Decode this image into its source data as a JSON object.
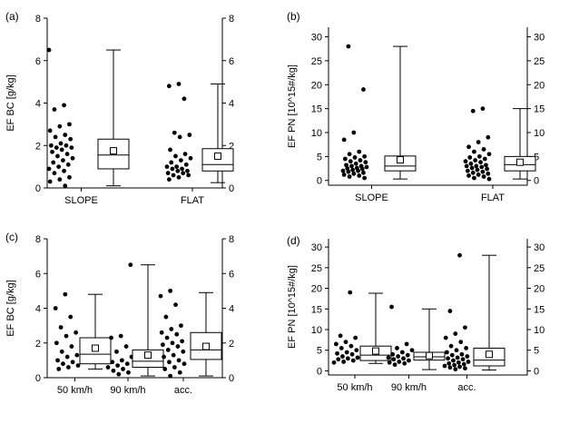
{
  "chart_data": [
    {
      "type": "box",
      "panel_label": "(a)",
      "ylabel": "EF BC [g/kg]",
      "ylim": [
        0,
        8
      ],
      "yticks": [
        0,
        2,
        4,
        6,
        8
      ],
      "right_axis": true,
      "categories": [
        "SLOPE",
        "FLAT"
      ],
      "groups": [
        {
          "label": "SLOPE",
          "points": [
            6.5,
            3.9,
            3.7,
            3.0,
            2.9,
            2.7,
            2.5,
            2.4,
            2.3,
            2.1,
            2.0,
            2.0,
            1.9,
            1.9,
            1.8,
            1.7,
            1.6,
            1.5,
            1.4,
            1.3,
            1.2,
            1.1,
            1.0,
            0.9,
            0.8,
            0.7,
            0.5,
            0.4,
            0.3,
            0.1
          ],
          "box": {
            "min": 0.1,
            "q1": 0.9,
            "median": 1.55,
            "q3": 2.3,
            "max": 6.5,
            "mean": 1.75
          }
        },
        {
          "label": "FLAT",
          "points": [
            4.9,
            4.8,
            4.2,
            2.6,
            2.5,
            2.4,
            1.8,
            1.6,
            1.5,
            1.4,
            1.3,
            1.2,
            1.1,
            1.0,
            1.0,
            0.9,
            0.9,
            0.8,
            0.8,
            0.7,
            0.7,
            0.6,
            0.6,
            0.5,
            0.4
          ],
          "box": {
            "min": 0.25,
            "q1": 0.8,
            "median": 1.1,
            "q3": 1.85,
            "max": 4.9,
            "mean": 1.5
          }
        }
      ]
    },
    {
      "type": "box",
      "panel_label": "(b)",
      "ylabel": "EF PN [10^15#/kg]",
      "ylim": [
        -1,
        32
      ],
      "yticks": [
        0,
        5,
        10,
        15,
        20,
        25,
        30
      ],
      "right_axis": true,
      "categories": [
        "SLOPE",
        "FLAT"
      ],
      "groups": [
        {
          "label": "SLOPE",
          "points": [
            28,
            19,
            10,
            8.5,
            6,
            5.5,
            5,
            4.8,
            4.5,
            4.2,
            4,
            3.8,
            3.5,
            3.2,
            3,
            3,
            2.8,
            2.6,
            2.5,
            2.4,
            2.2,
            2,
            2,
            1.8,
            1.6,
            1.4,
            1.2,
            1,
            0.8,
            0.5
          ],
          "box": {
            "min": 0.3,
            "q1": 2.0,
            "median": 3.0,
            "q3": 5.1,
            "max": 28,
            "mean": 4.3
          }
        },
        {
          "label": "FLAT",
          "points": [
            15,
            14.5,
            9,
            8,
            7,
            6.5,
            6,
            5.5,
            5,
            4.8,
            4.5,
            4.2,
            4,
            3.8,
            3.5,
            3.2,
            3,
            3,
            2.8,
            2.6,
            2.4,
            2.2,
            2,
            1.8,
            1.6,
            1.4,
            1.2,
            1,
            0.8,
            0.5,
            0.3
          ],
          "box": {
            "min": 0.3,
            "q1": 2.0,
            "median": 3.3,
            "q3": 5.0,
            "max": 15,
            "mean": 3.8
          }
        }
      ]
    },
    {
      "type": "box",
      "panel_label": "(c)",
      "ylabel": "EF BC [g/kg]",
      "ylim": [
        0,
        8
      ],
      "yticks": [
        0,
        2,
        4,
        6,
        8
      ],
      "right_axis": true,
      "categories": [
        "50 km/h",
        "90 km/h",
        "acc."
      ],
      "groups": [
        {
          "label": "50 km/h",
          "points": [
            4.8,
            4.0,
            3.5,
            2.9,
            2.6,
            2.4,
            2.0,
            1.8,
            1.5,
            1.3,
            1.2,
            1.0,
            0.9,
            0.8,
            0.7,
            0.6,
            0.5
          ],
          "box": {
            "min": 0.5,
            "q1": 0.8,
            "median": 1.35,
            "q3": 2.3,
            "max": 4.8,
            "mean": 1.7
          }
        },
        {
          "label": "90 km/h",
          "points": [
            6.5,
            2.4,
            2.3,
            1.8,
            1.5,
            1.2,
            1.0,
            0.9,
            0.8,
            0.7,
            0.6,
            0.5,
            0.4,
            0.3,
            0.2
          ],
          "box": {
            "min": 0.1,
            "q1": 0.6,
            "median": 0.95,
            "q3": 1.6,
            "max": 6.5,
            "mean": 1.3
          }
        },
        {
          "label": "acc.",
          "points": [
            5.0,
            4.7,
            4.2,
            3.5,
            3.0,
            2.8,
            2.6,
            2.5,
            2.3,
            2.1,
            2.0,
            1.9,
            1.8,
            1.6,
            1.5,
            1.3,
            1.2,
            1.0,
            0.9,
            0.8,
            0.6,
            0.5,
            0.3,
            0.1
          ],
          "box": {
            "min": 0.1,
            "q1": 1.05,
            "median": 1.6,
            "q3": 2.6,
            "max": 4.9,
            "mean": 1.8
          }
        }
      ]
    },
    {
      "type": "box",
      "panel_label": "(d)",
      "ylabel": "EF PN [10^15#/kg]",
      "ylim": [
        -1,
        32
      ],
      "yticks": [
        0,
        5,
        10,
        15,
        20,
        25,
        30
      ],
      "right_axis": true,
      "categories": [
        "50 km/h",
        "90 km/h",
        "acc."
      ],
      "groups": [
        {
          "label": "50 km/h",
          "points": [
            19,
            8.5,
            8,
            7,
            6.5,
            6,
            5.5,
            5,
            4.5,
            4.2,
            4,
            3.5,
            3.2,
            3,
            2.8,
            2.5,
            2.2,
            2
          ],
          "box": {
            "min": 1.8,
            "q1": 2.5,
            "median": 3.8,
            "q3": 6.0,
            "max": 18.8,
            "mean": 4.8
          }
        },
        {
          "label": "90 km/h",
          "points": [
            15.5,
            6.5,
            5.5,
            5,
            4.5,
            4,
            3.8,
            3.5,
            3.2,
            3,
            2.8,
            2.5,
            2.2,
            2,
            1.8,
            1.5
          ],
          "box": {
            "min": 0.3,
            "q1": 2.6,
            "median": 3.4,
            "q3": 4.5,
            "max": 15,
            "mean": 3.7
          }
        },
        {
          "label": "acc.",
          "points": [
            28,
            14.5,
            10.5,
            9,
            8,
            7,
            6,
            5.5,
            5,
            4.5,
            4,
            3.8,
            3.5,
            3.2,
            3,
            2.8,
            2.5,
            2.2,
            2,
            1.8,
            1.6,
            1.4,
            1.2,
            1,
            0.8,
            0.6,
            0.4
          ],
          "box": {
            "min": 0.2,
            "q1": 1.2,
            "median": 2.6,
            "q3": 5.5,
            "max": 28,
            "mean": 4.0
          }
        }
      ]
    }
  ]
}
